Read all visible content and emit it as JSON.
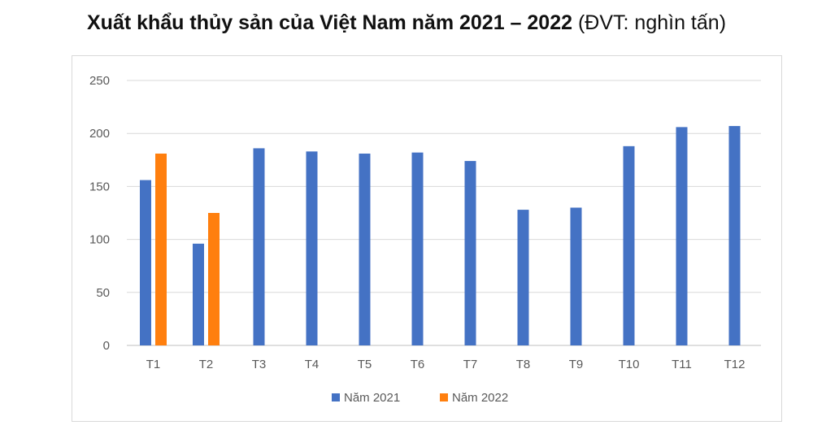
{
  "chart_data": {
    "type": "bar",
    "title": "Xuất khẩu thủy sản của Việt Nam năm 2021 – 2022",
    "title_unit": "(ĐVT: nghìn tấn)",
    "categories": [
      "T1",
      "T2",
      "T3",
      "T4",
      "T5",
      "T6",
      "T7",
      "T8",
      "T9",
      "T10",
      "T11",
      "T12"
    ],
    "series": [
      {
        "name": "Năm 2021",
        "color": "#4472c4",
        "values": [
          156,
          96,
          186,
          183,
          181,
          182,
          174,
          128,
          130,
          188,
          206,
          207
        ]
      },
      {
        "name": "Năm 2022",
        "color": "#ff7f0e",
        "values": [
          181,
          125,
          null,
          null,
          null,
          null,
          null,
          null,
          null,
          null,
          null,
          null
        ]
      }
    ],
    "y_ticks": [
      "0",
      "50",
      "100",
      "150",
      "200",
      "250"
    ],
    "ylim": [
      0,
      250
    ],
    "grid": true,
    "legend_position": "bottom"
  }
}
